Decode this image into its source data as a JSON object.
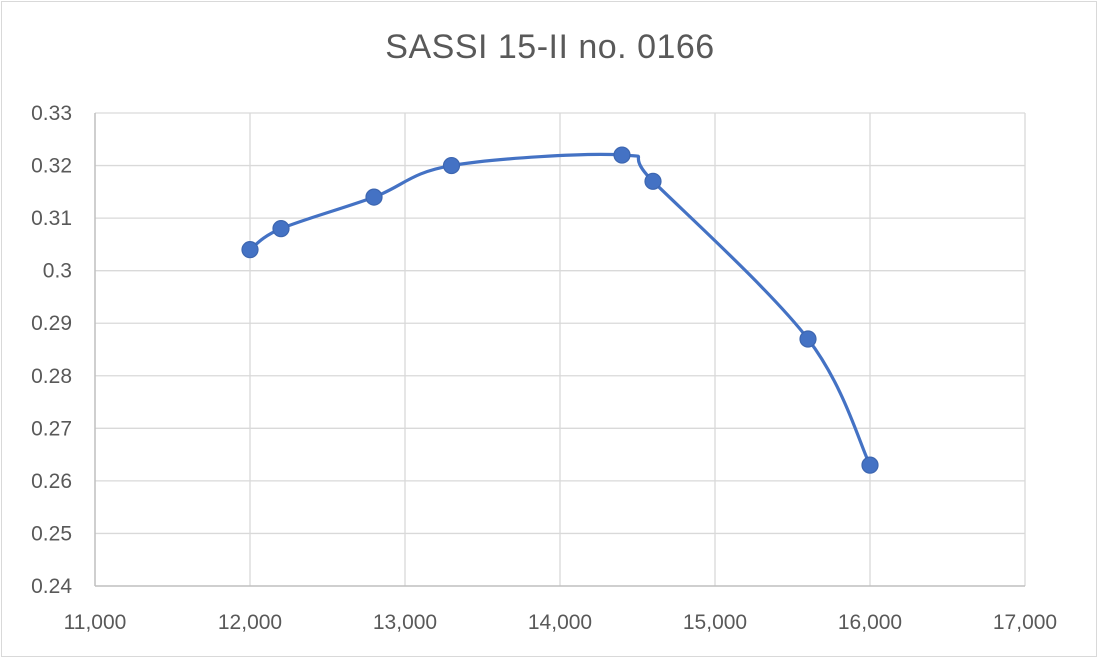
{
  "chart_data": {
    "type": "scatter",
    "title": "SASSI 15-II no. 0166",
    "xlabel": "",
    "ylabel": "",
    "xlim": [
      11000,
      17000
    ],
    "ylim": [
      0.24,
      0.33
    ],
    "x_ticks": [
      11000,
      12000,
      13000,
      14000,
      15000,
      16000,
      17000
    ],
    "x_tick_labels": [
      "11,000",
      "12,000",
      "13,000",
      "14,000",
      "15,000",
      "16,000",
      "17,000"
    ],
    "y_ticks": [
      0.24,
      0.25,
      0.26,
      0.27,
      0.28,
      0.29,
      0.3,
      0.31,
      0.32,
      0.33
    ],
    "y_tick_labels": [
      "0.24",
      "0.25",
      "0.26",
      "0.27",
      "0.28",
      "0.29",
      "0.3",
      "0.31",
      "0.32",
      "0.33"
    ],
    "grid": "major gridlines on",
    "line_style": "smoothed line with markers",
    "series": [
      {
        "color": "#4472c4",
        "x": [
          12000,
          12200,
          12800,
          13300,
          14400,
          14600,
          15600,
          16000
        ],
        "y": [
          0.304,
          0.308,
          0.314,
          0.32,
          0.322,
          0.317,
          0.287,
          0.263
        ]
      }
    ]
  }
}
